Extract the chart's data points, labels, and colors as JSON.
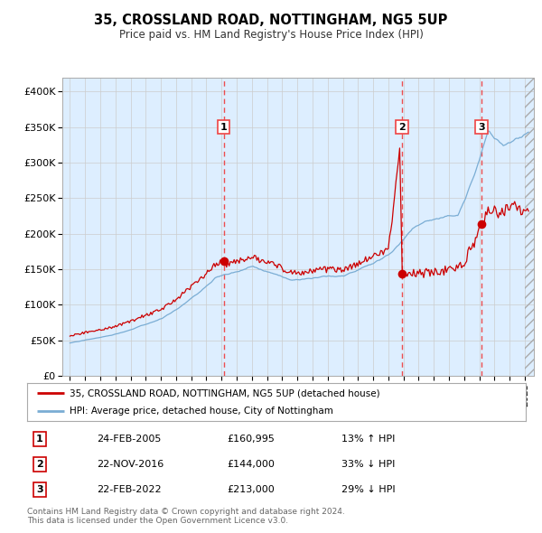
{
  "title": "35, CROSSLAND ROAD, NOTTINGHAM, NG5 5UP",
  "subtitle": "Price paid vs. HM Land Registry's House Price Index (HPI)",
  "legend_line1": "35, CROSSLAND ROAD, NOTTINGHAM, NG5 5UP (detached house)",
  "legend_line2": "HPI: Average price, detached house, City of Nottingham",
  "footnote": "Contains HM Land Registry data © Crown copyright and database right 2024.\nThis data is licensed under the Open Government Licence v3.0.",
  "transactions": [
    {
      "num": 1,
      "date": "24-FEB-2005",
      "price": 160995,
      "hpi_rel": "13% ↑ HPI"
    },
    {
      "num": 2,
      "date": "22-NOV-2016",
      "price": 144000,
      "hpi_rel": "33% ↓ HPI"
    },
    {
      "num": 3,
      "date": "22-FEB-2022",
      "price": 213000,
      "hpi_rel": "29% ↓ HPI"
    }
  ],
  "transaction_dates_decimal": [
    2005.14,
    2016.9,
    2022.14
  ],
  "transaction_prices": [
    160995,
    144000,
    213000
  ],
  "red_line_color": "#cc0000",
  "blue_line_color": "#7aadd4",
  "bg_color": "#ddeeff",
  "plot_bg": "#ffffff",
  "grid_color": "#cccccc",
  "dashed_line_color": "#ee4444",
  "ylim": [
    0,
    420000
  ],
  "yticks": [
    0,
    50000,
    100000,
    150000,
    200000,
    250000,
    300000,
    350000,
    400000
  ],
  "xlim_start": 1994.5,
  "xlim_end": 2025.6
}
